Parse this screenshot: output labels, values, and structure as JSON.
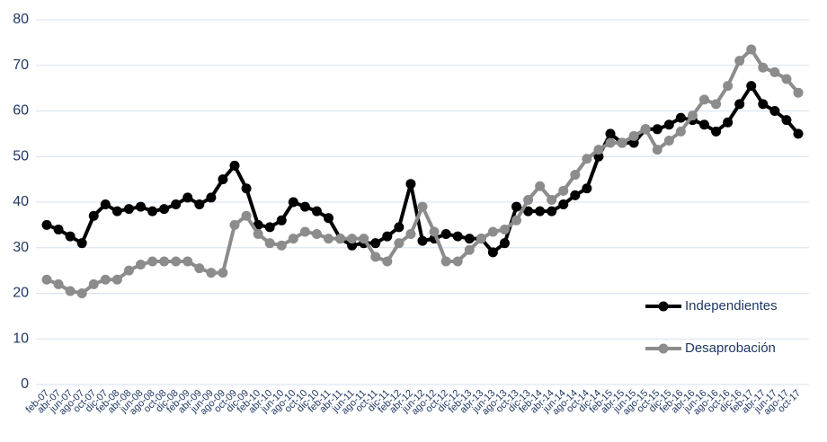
{
  "chart_data": {
    "type": "line",
    "categories": [
      "feb-07",
      "abr-07",
      "jun-07",
      "ago-07",
      "oct-07",
      "dic-07",
      "feb-08",
      "abr-08",
      "jun-08",
      "ago-08",
      "oct-08",
      "dic-08",
      "feb-09",
      "abr-09",
      "jun-09",
      "ago-09",
      "oct-09",
      "dic-09",
      "feb-10",
      "abr-10",
      "jun-10",
      "ago-10",
      "oct-10",
      "dic-10",
      "feb-11",
      "abr-11",
      "jun-11",
      "ago-11",
      "oct-11",
      "dic-11",
      "feb-12",
      "abr-12",
      "jun-12",
      "ago-12",
      "oct-12",
      "dic-12",
      "feb-13",
      "abr-13",
      "jun-13",
      "ago-13",
      "oct-13",
      "dic-13",
      "feb-14",
      "abr-14",
      "jun-14",
      "ago-14",
      "oct-14",
      "dic-14",
      "feb-15",
      "abr-15",
      "jun-15",
      "ago-15",
      "oct-15",
      "dic-15",
      "feb-16",
      "abr-16",
      "jun-16",
      "ago-16",
      "oct-16",
      "dic-16",
      "feb-17",
      "abr-17",
      "jun-17",
      "ago-17",
      "oct-17"
    ],
    "series": [
      {
        "name": "Independientes",
        "color": "#000000",
        "values": [
          35,
          34,
          32.5,
          31,
          37,
          39.5,
          38,
          38.5,
          39,
          38,
          38.5,
          39.5,
          41,
          39.5,
          41,
          45,
          48,
          43,
          35,
          34.5,
          36,
          40,
          39,
          38,
          36.5,
          32,
          30.5,
          31,
          31,
          32.5,
          34.5,
          44,
          31.5,
          32,
          33,
          32.5,
          32,
          32,
          29,
          31,
          39,
          38,
          38,
          38,
          39.5,
          41.5,
          43,
          50,
          55,
          53,
          53,
          56,
          56,
          57,
          58.5,
          58,
          57,
          55.5,
          57.5,
          61.5,
          65.5,
          61.5,
          60,
          58,
          55
        ]
      },
      {
        "name": "Desaprobación",
        "color": "#8c8c8c",
        "values": [
          23,
          22,
          20.5,
          20,
          22,
          23,
          23,
          25,
          26.3,
          27,
          27,
          27,
          27,
          25.5,
          24.5,
          24.5,
          35,
          37,
          33,
          31,
          30.5,
          32,
          33.5,
          33,
          32,
          32,
          32,
          32,
          28,
          27,
          31,
          33,
          39,
          33.5,
          27,
          27,
          29.5,
          32,
          33.5,
          34,
          36,
          40.5,
          43.5,
          40.5,
          42.5,
          46,
          49.5,
          51.5,
          53,
          53,
          54.5,
          56,
          51.5,
          53.5,
          55.5,
          59,
          62.5,
          61.5,
          65.5,
          71,
          73.5,
          69.5,
          68.5,
          67,
          64
        ]
      }
    ],
    "ylim": [
      0,
      80
    ],
    "yticks": [
      0,
      10,
      20,
      30,
      40,
      50,
      60,
      70,
      80
    ],
    "grid": true,
    "legend": "lower-right"
  }
}
